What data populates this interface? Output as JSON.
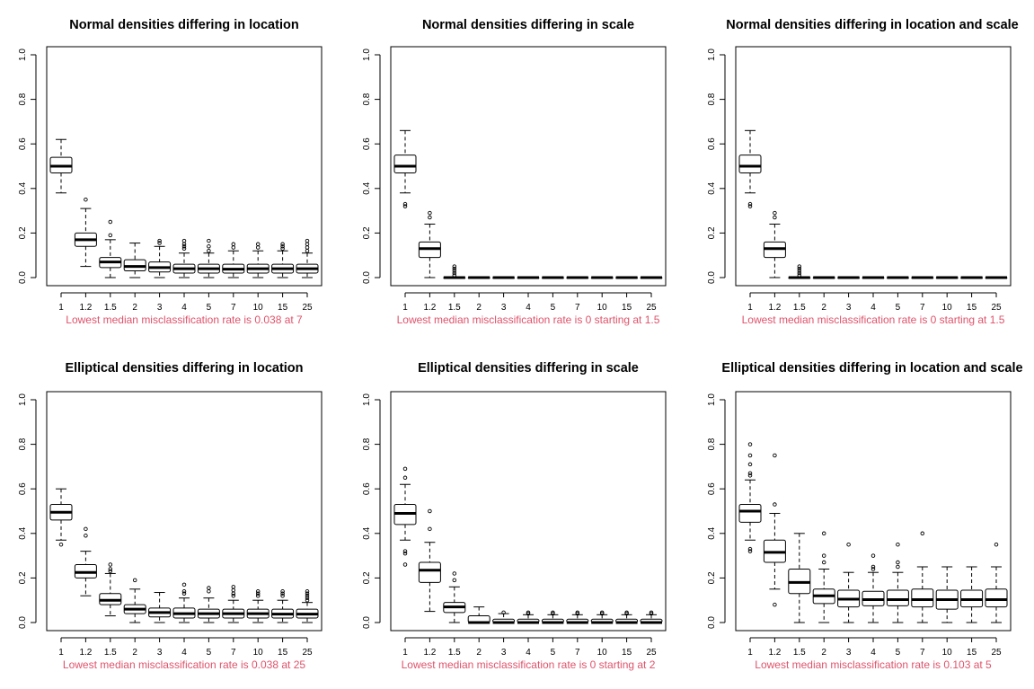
{
  "figure": {
    "note_color": "#DF536B"
  },
  "chart_data": [
    {
      "type": "boxplot",
      "title": "Normal densities differing in location",
      "categories": [
        "1",
        "1.2",
        "1.5",
        "2",
        "3",
        "4",
        "5",
        "7",
        "10",
        "15",
        "25"
      ],
      "yticks": [
        "0.0",
        "0.2",
        "0.4",
        "0.6",
        "0.8",
        "1.0"
      ],
      "ylim": [
        0,
        1
      ],
      "boxes": [
        {
          "lo": 0.38,
          "q1": 0.47,
          "med": 0.5,
          "q3": 0.54,
          "hi": 0.62,
          "out": []
        },
        {
          "lo": 0.05,
          "q1": 0.14,
          "med": 0.17,
          "q3": 0.2,
          "hi": 0.31,
          "out": [
            0.35
          ]
        },
        {
          "lo": 0.0,
          "q1": 0.045,
          "med": 0.07,
          "q3": 0.09,
          "hi": 0.17,
          "out": [
            0.19,
            0.25
          ]
        },
        {
          "lo": 0.0,
          "q1": 0.03,
          "med": 0.05,
          "q3": 0.08,
          "hi": 0.155,
          "out": []
        },
        {
          "lo": 0.0,
          "q1": 0.025,
          "med": 0.045,
          "q3": 0.07,
          "hi": 0.14,
          "out": [
            0.155,
            0.165
          ]
        },
        {
          "lo": 0.0,
          "q1": 0.02,
          "med": 0.04,
          "q3": 0.06,
          "hi": 0.11,
          "out": [
            0.13,
            0.14,
            0.15,
            0.165
          ]
        },
        {
          "lo": 0.0,
          "q1": 0.02,
          "med": 0.04,
          "q3": 0.06,
          "hi": 0.11,
          "out": [
            0.12,
            0.14,
            0.165
          ]
        },
        {
          "lo": 0.0,
          "q1": 0.02,
          "med": 0.038,
          "q3": 0.06,
          "hi": 0.12,
          "out": [
            0.135,
            0.15
          ]
        },
        {
          "lo": 0.0,
          "q1": 0.02,
          "med": 0.04,
          "q3": 0.06,
          "hi": 0.12,
          "out": [
            0.135,
            0.15
          ]
        },
        {
          "lo": 0.0,
          "q1": 0.02,
          "med": 0.04,
          "q3": 0.06,
          "hi": 0.12,
          "out": [
            0.13,
            0.14,
            0.15
          ]
        },
        {
          "lo": 0.0,
          "q1": 0.02,
          "med": 0.04,
          "q3": 0.06,
          "hi": 0.11,
          "out": [
            0.12,
            0.135,
            0.15,
            0.165
          ]
        }
      ],
      "note": "Lowest median misclassification rate is 0.038 at 7"
    },
    {
      "type": "boxplot",
      "title": "Normal densities differing in scale",
      "categories": [
        "1",
        "1.2",
        "1.5",
        "2",
        "3",
        "4",
        "5",
        "7",
        "10",
        "15",
        "25"
      ],
      "yticks": [
        "0.0",
        "0.2",
        "0.4",
        "0.6",
        "0.8",
        "1.0"
      ],
      "ylim": [
        0,
        1
      ],
      "boxes": [
        {
          "lo": 0.38,
          "q1": 0.47,
          "med": 0.5,
          "q3": 0.55,
          "hi": 0.66,
          "out": [
            0.32,
            0.33
          ]
        },
        {
          "lo": 0.0,
          "q1": 0.09,
          "med": 0.13,
          "q3": 0.16,
          "hi": 0.24,
          "out": [
            0.27,
            0.29
          ]
        },
        {
          "lo": 0.0,
          "q1": 0.0,
          "med": 0.0,
          "q3": 0.0,
          "hi": 0.0,
          "out": [
            0.01,
            0.02,
            0.03,
            0.04,
            0.05
          ]
        },
        {
          "lo": 0,
          "q1": 0,
          "med": 0,
          "q3": 0,
          "hi": 0,
          "out": []
        },
        {
          "lo": 0,
          "q1": 0,
          "med": 0,
          "q3": 0,
          "hi": 0,
          "out": []
        },
        {
          "lo": 0,
          "q1": 0,
          "med": 0,
          "q3": 0,
          "hi": 0,
          "out": []
        },
        {
          "lo": 0,
          "q1": 0,
          "med": 0,
          "q3": 0,
          "hi": 0,
          "out": []
        },
        {
          "lo": 0,
          "q1": 0,
          "med": 0,
          "q3": 0,
          "hi": 0,
          "out": []
        },
        {
          "lo": 0,
          "q1": 0,
          "med": 0,
          "q3": 0,
          "hi": 0,
          "out": []
        },
        {
          "lo": 0,
          "q1": 0,
          "med": 0,
          "q3": 0,
          "hi": 0,
          "out": []
        },
        {
          "lo": 0,
          "q1": 0,
          "med": 0,
          "q3": 0,
          "hi": 0,
          "out": []
        }
      ],
      "note": "Lowest median misclassification rate is 0 starting at 1.5"
    },
    {
      "type": "boxplot",
      "title": "Normal densities differing in location and scale",
      "categories": [
        "1",
        "1.2",
        "1.5",
        "2",
        "3",
        "4",
        "5",
        "7",
        "10",
        "15",
        "25"
      ],
      "yticks": [
        "0.0",
        "0.2",
        "0.4",
        "0.6",
        "0.8",
        "1.0"
      ],
      "ylim": [
        0,
        1
      ],
      "boxes": [
        {
          "lo": 0.38,
          "q1": 0.47,
          "med": 0.5,
          "q3": 0.55,
          "hi": 0.66,
          "out": [
            0.32,
            0.33
          ]
        },
        {
          "lo": 0.0,
          "q1": 0.09,
          "med": 0.13,
          "q3": 0.16,
          "hi": 0.24,
          "out": [
            0.27,
            0.29
          ]
        },
        {
          "lo": 0.0,
          "q1": 0.0,
          "med": 0.0,
          "q3": 0.0,
          "hi": 0.0,
          "out": [
            0.01,
            0.02,
            0.03,
            0.04,
            0.05
          ]
        },
        {
          "lo": 0,
          "q1": 0,
          "med": 0,
          "q3": 0,
          "hi": 0,
          "out": []
        },
        {
          "lo": 0,
          "q1": 0,
          "med": 0,
          "q3": 0,
          "hi": 0,
          "out": []
        },
        {
          "lo": 0,
          "q1": 0,
          "med": 0,
          "q3": 0,
          "hi": 0,
          "out": []
        },
        {
          "lo": 0,
          "q1": 0,
          "med": 0,
          "q3": 0,
          "hi": 0,
          "out": []
        },
        {
          "lo": 0,
          "q1": 0,
          "med": 0,
          "q3": 0,
          "hi": 0,
          "out": []
        },
        {
          "lo": 0,
          "q1": 0,
          "med": 0,
          "q3": 0,
          "hi": 0,
          "out": []
        },
        {
          "lo": 0,
          "q1": 0,
          "med": 0,
          "q3": 0,
          "hi": 0,
          "out": []
        },
        {
          "lo": 0,
          "q1": 0,
          "med": 0,
          "q3": 0,
          "hi": 0,
          "out": []
        }
      ],
      "note": "Lowest median misclassification rate is 0 starting at 1.5"
    },
    {
      "type": "boxplot",
      "title": "Elliptical densities differing in location",
      "categories": [
        "1",
        "1.2",
        "1.5",
        "2",
        "3",
        "4",
        "5",
        "7",
        "10",
        "15",
        "25"
      ],
      "yticks": [
        "0.0",
        "0.2",
        "0.4",
        "0.6",
        "0.8",
        "1.0"
      ],
      "ylim": [
        0,
        1
      ],
      "boxes": [
        {
          "lo": 0.37,
          "q1": 0.46,
          "med": 0.495,
          "q3": 0.53,
          "hi": 0.6,
          "out": [
            0.35
          ]
        },
        {
          "lo": 0.12,
          "q1": 0.2,
          "med": 0.225,
          "q3": 0.26,
          "hi": 0.32,
          "out": [
            0.39,
            0.42
          ]
        },
        {
          "lo": 0.03,
          "q1": 0.08,
          "med": 0.1,
          "q3": 0.13,
          "hi": 0.22,
          "out": [
            0.23,
            0.24,
            0.26
          ]
        },
        {
          "lo": 0.0,
          "q1": 0.04,
          "med": 0.06,
          "q3": 0.08,
          "hi": 0.15,
          "out": [
            0.19
          ]
        },
        {
          "lo": 0.0,
          "q1": 0.025,
          "med": 0.045,
          "q3": 0.065,
          "hi": 0.135,
          "out": []
        },
        {
          "lo": 0.0,
          "q1": 0.02,
          "med": 0.04,
          "q3": 0.065,
          "hi": 0.11,
          "out": [
            0.13,
            0.14,
            0.17
          ]
        },
        {
          "lo": 0.0,
          "q1": 0.02,
          "med": 0.04,
          "q3": 0.06,
          "hi": 0.11,
          "out": [
            0.14,
            0.155
          ]
        },
        {
          "lo": 0.0,
          "q1": 0.02,
          "med": 0.04,
          "q3": 0.06,
          "hi": 0.1,
          "out": [
            0.12,
            0.13,
            0.145,
            0.16
          ]
        },
        {
          "lo": 0.0,
          "q1": 0.02,
          "med": 0.04,
          "q3": 0.06,
          "hi": 0.1,
          "out": [
            0.12,
            0.13,
            0.14
          ]
        },
        {
          "lo": 0.0,
          "q1": 0.02,
          "med": 0.038,
          "q3": 0.06,
          "hi": 0.1,
          "out": [
            0.12,
            0.13,
            0.14
          ]
        },
        {
          "lo": 0.0,
          "q1": 0.02,
          "med": 0.038,
          "q3": 0.06,
          "hi": 0.09,
          "out": [
            0.1,
            0.11,
            0.12,
            0.13,
            0.14
          ]
        }
      ],
      "note": "Lowest median misclassification rate is 0.038 at 25"
    },
    {
      "type": "boxplot",
      "title": "Elliptical densities differing in scale",
      "categories": [
        "1",
        "1.2",
        "1.5",
        "2",
        "3",
        "4",
        "5",
        "7",
        "10",
        "15",
        "25"
      ],
      "yticks": [
        "0.0",
        "0.2",
        "0.4",
        "0.6",
        "0.8",
        "1.0"
      ],
      "ylim": [
        0,
        1
      ],
      "boxes": [
        {
          "lo": 0.37,
          "q1": 0.44,
          "med": 0.49,
          "q3": 0.53,
          "hi": 0.62,
          "out": [
            0.26,
            0.31,
            0.32,
            0.65,
            0.69
          ]
        },
        {
          "lo": 0.05,
          "q1": 0.18,
          "med": 0.235,
          "q3": 0.27,
          "hi": 0.36,
          "out": [
            0.42,
            0.5
          ]
        },
        {
          "lo": 0.0,
          "q1": 0.045,
          "med": 0.07,
          "q3": 0.09,
          "hi": 0.16,
          "out": [
            0.19,
            0.22
          ]
        },
        {
          "lo": 0.0,
          "q1": 0.0,
          "med": 0.0,
          "q3": 0.03,
          "hi": 0.07,
          "out": []
        },
        {
          "lo": 0.0,
          "q1": 0.0,
          "med": 0.0,
          "q3": 0.015,
          "hi": 0.04,
          "out": [
            0.045
          ]
        },
        {
          "lo": 0.0,
          "q1": 0.0,
          "med": 0.0,
          "q3": 0.015,
          "hi": 0.035,
          "out": [
            0.04,
            0.045
          ]
        },
        {
          "lo": 0.0,
          "q1": 0.0,
          "med": 0.0,
          "q3": 0.015,
          "hi": 0.035,
          "out": [
            0.04,
            0.045
          ]
        },
        {
          "lo": 0.0,
          "q1": 0.0,
          "med": 0.0,
          "q3": 0.015,
          "hi": 0.035,
          "out": [
            0.04,
            0.045
          ]
        },
        {
          "lo": 0.0,
          "q1": 0.0,
          "med": 0.0,
          "q3": 0.015,
          "hi": 0.035,
          "out": [
            0.04,
            0.045
          ]
        },
        {
          "lo": 0.0,
          "q1": 0.0,
          "med": 0.0,
          "q3": 0.015,
          "hi": 0.035,
          "out": [
            0.04,
            0.045
          ]
        },
        {
          "lo": 0.0,
          "q1": 0.0,
          "med": 0.0,
          "q3": 0.015,
          "hi": 0.035,
          "out": [
            0.04,
            0.045
          ]
        }
      ],
      "note": "Lowest median misclassification rate is 0 starting at 2"
    },
    {
      "type": "boxplot",
      "title": "Elliptical densities differing in location and scale",
      "categories": [
        "1",
        "1.2",
        "1.5",
        "2",
        "3",
        "4",
        "5",
        "7",
        "10",
        "15",
        "25"
      ],
      "yticks": [
        "0.0",
        "0.2",
        "0.4",
        "0.6",
        "0.8",
        "1.0"
      ],
      "ylim": [
        0,
        1
      ],
      "boxes": [
        {
          "lo": 0.37,
          "q1": 0.45,
          "med": 0.5,
          "q3": 0.53,
          "hi": 0.64,
          "out": [
            0.32,
            0.33,
            0.66,
            0.67,
            0.71,
            0.75,
            0.8
          ]
        },
        {
          "lo": 0.15,
          "q1": 0.27,
          "med": 0.315,
          "q3": 0.37,
          "hi": 0.49,
          "out": [
            0.08,
            0.53,
            0.75
          ]
        },
        {
          "lo": 0.0,
          "q1": 0.13,
          "med": 0.18,
          "q3": 0.24,
          "hi": 0.4,
          "out": []
        },
        {
          "lo": 0.0,
          "q1": 0.085,
          "med": 0.12,
          "q3": 0.15,
          "hi": 0.24,
          "out": [
            0.27,
            0.3,
            0.4
          ]
        },
        {
          "lo": 0.0,
          "q1": 0.07,
          "med": 0.105,
          "q3": 0.145,
          "hi": 0.225,
          "out": [
            0.35
          ]
        },
        {
          "lo": 0.0,
          "q1": 0.075,
          "med": 0.103,
          "q3": 0.14,
          "hi": 0.225,
          "out": [
            0.24,
            0.25,
            0.3
          ]
        },
        {
          "lo": 0.0,
          "q1": 0.075,
          "med": 0.103,
          "q3": 0.145,
          "hi": 0.225,
          "out": [
            0.25,
            0.27,
            0.35
          ]
        },
        {
          "lo": 0.0,
          "q1": 0.07,
          "med": 0.103,
          "q3": 0.15,
          "hi": 0.25,
          "out": [
            0.4
          ]
        },
        {
          "lo": 0.0,
          "q1": 0.06,
          "med": 0.103,
          "q3": 0.145,
          "hi": 0.25,
          "out": []
        },
        {
          "lo": 0.0,
          "q1": 0.07,
          "med": 0.103,
          "q3": 0.145,
          "hi": 0.25,
          "out": []
        },
        {
          "lo": 0.0,
          "q1": 0.07,
          "med": 0.103,
          "q3": 0.15,
          "hi": 0.25,
          "out": [
            0.35
          ]
        }
      ],
      "note": "Lowest median misclassification rate is 0.103 at 5"
    }
  ]
}
